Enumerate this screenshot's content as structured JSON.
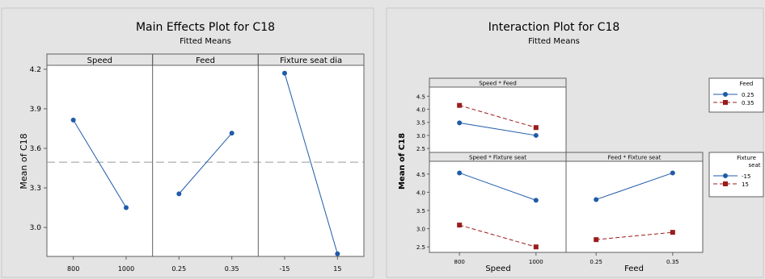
{
  "chart_data": [
    {
      "type": "line",
      "title": "Main Effects Plot for C18",
      "subtitle": "Fitted Means",
      "ylabel": "Mean of C18",
      "ylim": [
        2.78,
        4.23
      ],
      "yticks": [
        "4.2",
        "3.9",
        "3.6",
        "3.3",
        "3.0"
      ],
      "reference_mean": 3.495,
      "panels": [
        {
          "name": "Speed",
          "categories": [
            "800",
            "1000"
          ],
          "values": [
            3.815,
            3.15
          ]
        },
        {
          "name": "Feed",
          "categories": [
            "0.25",
            "0.35"
          ],
          "values": [
            3.255,
            3.715
          ]
        },
        {
          "name": "Fixture seat dia",
          "categories": [
            "-15",
            "15"
          ],
          "values": [
            4.17,
            2.8
          ]
        }
      ]
    },
    {
      "type": "line",
      "title": "Interaction Plot for C18",
      "subtitle": "Fitted Means",
      "ylabel": "Mean of C18",
      "ylim": [
        2.35,
        4.85
      ],
      "yticks": [
        "4.5",
        "4.0",
        "3.5",
        "3.0",
        "2.5"
      ],
      "panels": [
        {
          "name": "Speed * Feed",
          "xcategories": [
            "800",
            "1000"
          ],
          "series": [
            {
              "name": "0.25",
              "values": [
                3.48,
                3.0
              ]
            },
            {
              "name": "0.35",
              "values": [
                4.15,
                3.3
              ]
            }
          ]
        },
        {
          "name": "Speed * Fixture seat",
          "xcategories": [
            "800",
            "1000"
          ],
          "series": [
            {
              "name": "-15",
              "values": [
                4.53,
                3.78
              ]
            },
            {
              "name": "15",
              "values": [
                3.1,
                2.5
              ]
            }
          ]
        },
        {
          "name": "Feed * Fixture seat",
          "xcategories": [
            "0.25",
            "0.35"
          ],
          "series": [
            {
              "name": "-15",
              "values": [
                3.8,
                4.53
              ]
            },
            {
              "name": "15",
              "values": [
                2.7,
                2.9
              ]
            }
          ]
        }
      ],
      "xlabels": [
        "Speed",
        "Feed"
      ],
      "legends": [
        {
          "title_lines": [
            "Feed"
          ],
          "entries": [
            "0.25",
            "0.35"
          ]
        },
        {
          "title_lines": [
            "Fixture",
            "seat"
          ],
          "entries": [
            "-15",
            "15"
          ]
        }
      ],
      "series_colors": [
        "#1f5ba8",
        "#9b1c1c"
      ],
      "series_dash": [
        "solid",
        "dashed"
      ]
    }
  ]
}
